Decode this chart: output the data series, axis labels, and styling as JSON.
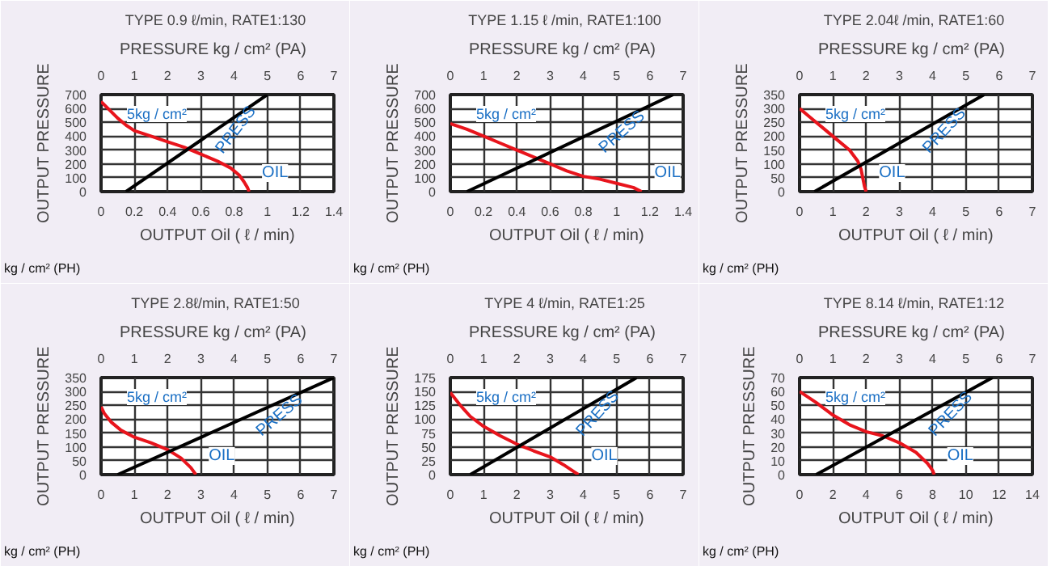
{
  "chart_data": [
    {
      "type": "line",
      "title": "TYPE  0.9 ℓ/min, RATE1:130",
      "x2label": "PRESSURE   kg / cm² (PA)",
      "ylabel": "OUTPUT PRESSURE",
      "xlabel": "OUTPUT Oil ( ℓ / min)",
      "annotations": [
        "5kg / cm²",
        "kg / cm² (PH)"
      ],
      "xlim": [
        0,
        1.4
      ],
      "xticks": [
        0,
        0.2,
        0.4,
        0.6,
        0.8,
        1.0,
        1.2,
        1.4
      ],
      "x2lim": [
        0,
        7
      ],
      "x2ticks": [
        0,
        1,
        2,
        3,
        4,
        5,
        6,
        7
      ],
      "ylim": [
        0,
        700
      ],
      "yticks": [
        0,
        100,
        200,
        300,
        400,
        500,
        600,
        700
      ],
      "grid": true,
      "series": [
        {
          "name": "OIL",
          "color": "#e8141c",
          "x": [
            0,
            0.05,
            0.1,
            0.15,
            0.2,
            0.3,
            0.4,
            0.5,
            0.6,
            0.7,
            0.78,
            0.83,
            0.86,
            0.88,
            0.89
          ],
          "values": [
            650,
            590,
            530,
            480,
            440,
            400,
            360,
            320,
            270,
            220,
            170,
            120,
            70,
            30,
            0
          ]
        },
        {
          "name": "PRESS",
          "color": "#000000",
          "axis": "x2",
          "x": [
            0.75,
            5.0
          ],
          "values": [
            0,
            700
          ]
        }
      ]
    },
    {
      "type": "line",
      "title": "TYPE  1.15 ℓ /min, RATE1:100",
      "x2label": "PRESSURE   kg / cm² (PA)",
      "ylabel": "OUTPUT PRESSURE",
      "xlabel": "OUTPUT Oil ( ℓ / min)",
      "annotations": [
        "5kg / cm²",
        "kg / cm² (PH)"
      ],
      "xlim": [
        0,
        1.4
      ],
      "xticks": [
        0,
        0.2,
        0.4,
        0.6,
        0.8,
        1.0,
        1.2,
        1.4
      ],
      "x2lim": [
        0,
        7
      ],
      "x2ticks": [
        0,
        1,
        2,
        3,
        4,
        5,
        6,
        7
      ],
      "ylim": [
        0,
        700
      ],
      "yticks": [
        0,
        100,
        200,
        300,
        400,
        500,
        600,
        700
      ],
      "grid": true,
      "series": [
        {
          "name": "OIL",
          "color": "#e8141c",
          "x": [
            0,
            0.1,
            0.2,
            0.3,
            0.4,
            0.5,
            0.6,
            0.7,
            0.8,
            0.9,
            1.0,
            1.1,
            1.15
          ],
          "values": [
            490,
            450,
            400,
            350,
            300,
            250,
            200,
            150,
            110,
            90,
            60,
            30,
            0
          ]
        },
        {
          "name": "PRESS",
          "color": "#000000",
          "axis": "x2",
          "x": [
            0.5,
            6.7
          ],
          "values": [
            0,
            700
          ]
        }
      ]
    },
    {
      "type": "line",
      "title": "TYPE  2.04ℓ /min, RATE1:60",
      "x2label": "PRESSURE   kg / cm² (PA)",
      "ylabel": "OUTPUT PRESSURE",
      "xlabel": "OUTPUT Oil ( ℓ / min)",
      "annotations": [
        "5kg / cm²",
        "kg / cm² (PH)"
      ],
      "xlim": [
        0,
        7
      ],
      "xticks": [
        0,
        1,
        2,
        3,
        4,
        5,
        6,
        7
      ],
      "x2lim": [
        0,
        7
      ],
      "x2ticks": [
        0,
        1,
        2,
        3,
        4,
        5,
        6,
        7
      ],
      "ylim": [
        0,
        350
      ],
      "yticks": [
        0,
        50,
        100,
        150,
        200,
        250,
        300,
        350
      ],
      "grid": true,
      "series": [
        {
          "name": "OIL",
          "color": "#e8141c",
          "x": [
            0,
            0.3,
            0.7,
            1.1,
            1.5,
            1.75,
            1.85,
            1.9,
            1.95,
            2.0
          ],
          "values": [
            300,
            270,
            230,
            190,
            150,
            110,
            80,
            50,
            20,
            0
          ]
        },
        {
          "name": "PRESS",
          "color": "#000000",
          "axis": "x2",
          "x": [
            0.45,
            5.55
          ],
          "values": [
            0,
            350
          ]
        }
      ]
    },
    {
      "type": "line",
      "title": "TYPE  2.8ℓ/min, RATE1:50",
      "x2label": "PRESSURE   kg / cm² (PA)",
      "ylabel": "OUTPUT PRESSURE",
      "xlabel": "OUTPUT Oil ( ℓ / min)",
      "annotations": [
        "5kg / cm²",
        "kg / cm² (PH)"
      ],
      "xlim": [
        0,
        7
      ],
      "xticks": [
        0,
        1,
        2,
        3,
        4,
        5,
        6,
        7
      ],
      "x2lim": [
        0,
        7
      ],
      "x2ticks": [
        0,
        1,
        2,
        3,
        4,
        5,
        6,
        7
      ],
      "ylim": [
        0,
        350
      ],
      "yticks": [
        0,
        50,
        100,
        150,
        200,
        250,
        300,
        350
      ],
      "grid": true,
      "series": [
        {
          "name": "OIL",
          "color": "#e8141c",
          "x": [
            0,
            0.1,
            0.3,
            0.6,
            1,
            1.5,
            2,
            2.4,
            2.7,
            2.85
          ],
          "values": [
            245,
            220,
            190,
            160,
            135,
            115,
            90,
            60,
            25,
            0
          ]
        },
        {
          "name": "PRESS",
          "color": "#000000",
          "axis": "x2",
          "x": [
            0.5,
            7
          ],
          "values": [
            0,
            350
          ]
        }
      ]
    },
    {
      "type": "line",
      "title": "TYPE  4 ℓ/min, RATE1:25",
      "x2label": "PRESSURE   kg / cm² (PA)",
      "ylabel": "OUTPUT PRESSURE",
      "xlabel": "OUTPUT Oil ( ℓ / min)",
      "annotations": [
        "5kg / cm²",
        "kg / cm² (PH)"
      ],
      "xlim": [
        0,
        7
      ],
      "xticks": [
        0,
        1,
        2,
        3,
        4,
        5,
        6,
        7
      ],
      "x2lim": [
        0,
        7
      ],
      "x2ticks": [
        0,
        1,
        2,
        3,
        4,
        5,
        6,
        7
      ],
      "ylim": [
        0,
        175
      ],
      "yticks": [
        0,
        25,
        50,
        75,
        100,
        125,
        150,
        175
      ],
      "grid": true,
      "series": [
        {
          "name": "OIL",
          "color": "#e8141c",
          "x": [
            0,
            0.3,
            0.6,
            1,
            1.5,
            2,
            2.5,
            3,
            3.4,
            3.7,
            3.85
          ],
          "values": [
            148,
            125,
            105,
            87,
            70,
            55,
            43,
            32,
            18,
            6,
            0
          ]
        },
        {
          "name": "PRESS",
          "color": "#000000",
          "axis": "x2",
          "x": [
            0.6,
            5.6
          ],
          "values": [
            0,
            175
          ]
        }
      ]
    },
    {
      "type": "line",
      "title": "TYPE  8.14 ℓ/min, RATE1:12",
      "x2label": "PRESSURE   kg / cm² (PA)",
      "ylabel": "OUTPUT PRESSURE",
      "xlabel": "OUTPUT Oil ( ℓ / min)",
      "annotations": [
        "5kg / cm²",
        "kg / cm² (PH)"
      ],
      "xlim": [
        0,
        14
      ],
      "xticks": [
        0,
        2,
        4,
        6,
        8,
        10,
        12,
        14
      ],
      "x2lim": [
        0,
        7
      ],
      "x2ticks": [
        0,
        1,
        2,
        3,
        4,
        5,
        6,
        7
      ],
      "ylim": [
        0,
        70
      ],
      "yticks": [
        0,
        10,
        20,
        30,
        40,
        50,
        60,
        70
      ],
      "grid": true,
      "series": [
        {
          "name": "OIL",
          "color": "#e8141c",
          "x": [
            0,
            1,
            2,
            3,
            4,
            5,
            6,
            7,
            7.7,
            8,
            8.1
          ],
          "values": [
            60,
            52,
            43,
            36,
            31,
            28,
            23,
            16,
            8,
            3,
            0
          ]
        },
        {
          "name": "PRESS",
          "color": "#000000",
          "axis": "x2",
          "x": [
            0.5,
            5.8
          ],
          "values": [
            0,
            70
          ]
        }
      ]
    }
  ]
}
